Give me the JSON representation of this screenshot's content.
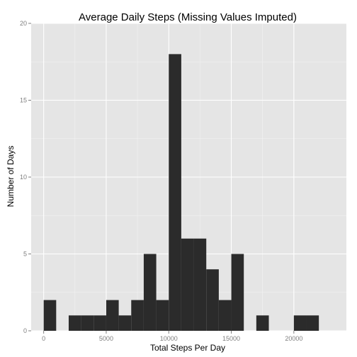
{
  "chart_data": {
    "type": "bar",
    "subtype": "histogram",
    "title": "Average Daily Steps (Missing Values Imputed)",
    "xlabel": "Total Steps Per Day",
    "ylabel": "Number of Days",
    "xlim": [
      -1000,
      24200
    ],
    "ylim": [
      0,
      20
    ],
    "x_ticks": [
      0,
      5000,
      10000,
      15000,
      20000
    ],
    "x_tick_labels": [
      "0",
      "5000",
      "10000",
      "15000",
      "20000"
    ],
    "y_ticks": [
      0,
      5,
      10,
      15,
      20
    ],
    "y_tick_labels": [
      "0",
      "5",
      "10",
      "15",
      "20"
    ],
    "bin_width": 1000,
    "bins": [
      {
        "start": 0,
        "end": 1000,
        "count": 2
      },
      {
        "start": 1000,
        "end": 2000,
        "count": 0
      },
      {
        "start": 2000,
        "end": 3000,
        "count": 1
      },
      {
        "start": 3000,
        "end": 4000,
        "count": 1
      },
      {
        "start": 4000,
        "end": 5000,
        "count": 1
      },
      {
        "start": 5000,
        "end": 6000,
        "count": 2
      },
      {
        "start": 6000,
        "end": 7000,
        "count": 1
      },
      {
        "start": 7000,
        "end": 8000,
        "count": 2
      },
      {
        "start": 8000,
        "end": 9000,
        "count": 5
      },
      {
        "start": 9000,
        "end": 10000,
        "count": 2
      },
      {
        "start": 10000,
        "end": 11000,
        "count": 18
      },
      {
        "start": 11000,
        "end": 12000,
        "count": 6
      },
      {
        "start": 12000,
        "end": 13000,
        "count": 6
      },
      {
        "start": 13000,
        "end": 14000,
        "count": 4
      },
      {
        "start": 14000,
        "end": 15000,
        "count": 2
      },
      {
        "start": 15000,
        "end": 16000,
        "count": 5
      },
      {
        "start": 16000,
        "end": 17000,
        "count": 0
      },
      {
        "start": 17000,
        "end": 18000,
        "count": 1
      },
      {
        "start": 18000,
        "end": 19000,
        "count": 0
      },
      {
        "start": 19000,
        "end": 20000,
        "count": 0
      },
      {
        "start": 20000,
        "end": 21000,
        "count": 1
      },
      {
        "start": 21000,
        "end": 22000,
        "count": 1
      }
    ],
    "grid": true,
    "colors": {
      "panel_background": "#e5e5e5",
      "grid_major": "#ffffff",
      "grid_minor": "#f2f2f2",
      "bar_fill": "#2b2b2b",
      "tick_label": "#7f7f7f"
    }
  }
}
